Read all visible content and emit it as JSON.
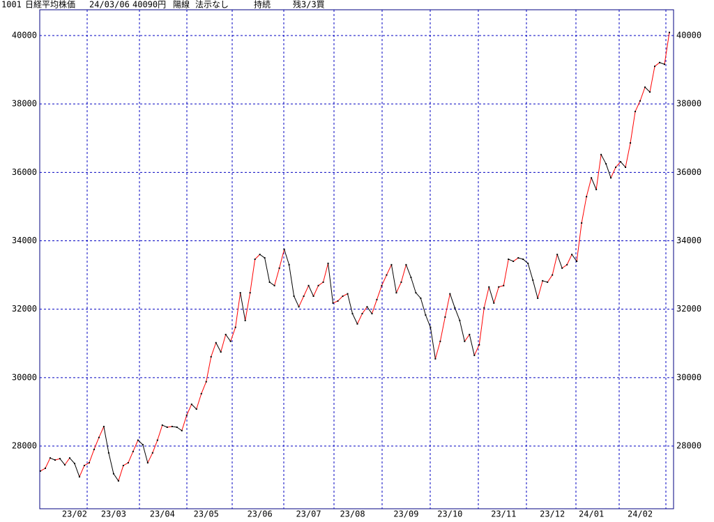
{
  "chart_data": {
    "type": "line",
    "title_parts": [
      "1001",
      "日経平均株価",
      "24/03/06",
      "40090円",
      "陽線",
      "法示なし",
      "持続",
      "残3/3買"
    ],
    "categories": [
      null,
      null,
      null,
      null,
      null,
      null,
      null,
      "23/02",
      null,
      null,
      null,
      null,
      null,
      null,
      null,
      "23/03",
      null,
      null,
      null,
      null,
      null,
      null,
      null,
      null,
      null,
      "23/04",
      null,
      null,
      null,
      null,
      null,
      null,
      null,
      null,
      "23/05",
      null,
      null,
      null,
      null,
      null,
      null,
      null,
      null,
      null,
      null,
      "23/06",
      null,
      null,
      null,
      null,
      null,
      null,
      null,
      null,
      null,
      "23/07",
      null,
      null,
      null,
      null,
      null,
      null,
      null,
      null,
      "23/08",
      null,
      null,
      null,
      null,
      null,
      null,
      null,
      null,
      null,
      null,
      "23/09",
      null,
      null,
      null,
      null,
      null,
      null,
      null,
      null,
      "23/10",
      null,
      null,
      null,
      null,
      null,
      null,
      null,
      null,
      null,
      null,
      "23/11",
      null,
      null,
      null,
      null,
      null,
      null,
      null,
      null,
      null,
      "23/12",
      null,
      null,
      null,
      null,
      null,
      null,
      null,
      "24/01",
      null,
      null,
      null,
      null,
      null,
      null,
      null,
      null,
      null,
      "24/02",
      null,
      null,
      null,
      null,
      null,
      null
    ],
    "values": [
      27270,
      27350,
      27650,
      27590,
      27630,
      27450,
      27650,
      27490,
      27100,
      27430,
      27510,
      27900,
      28250,
      28570,
      27800,
      27190,
      26980,
      27430,
      27510,
      27840,
      28170,
      28040,
      27510,
      27800,
      28170,
      28610,
      28550,
      28570,
      28550,
      28450,
      28900,
      29220,
      29080,
      29530,
      29880,
      30610,
      31020,
      30750,
      31260,
      31060,
      31470,
      32480,
      31670,
      32480,
      33460,
      33600,
      33500,
      32790,
      32690,
      33200,
      33750,
      33300,
      32380,
      32070,
      32380,
      32690,
      32380,
      32690,
      32790,
      33340,
      32180,
      32240,
      32380,
      32450,
      31870,
      31570,
      31870,
      32070,
      31870,
      32280,
      32690,
      33000,
      33300,
      32480,
      32790,
      33300,
      32930,
      32480,
      32320,
      31830,
      31470,
      30550,
      31060,
      31770,
      32450,
      32040,
      31670,
      31060,
      31260,
      30650,
      30960,
      32040,
      32650,
      32180,
      32650,
      32690,
      33460,
      33400,
      33500,
      33460,
      33340,
      32850,
      32320,
      32830,
      32790,
      33000,
      33600,
      33200,
      33300,
      33600,
      33400,
      34520,
      35290,
      35840,
      35500,
      36520,
      36250,
      35840,
      36150,
      36310,
      36150,
      36860,
      37780,
      38090,
      38490,
      38350,
      39100,
      39210,
      39160,
      40090
    ],
    "up_color": "#ff0000",
    "down_color": "#000000",
    "marker_color": "#000000",
    "ylim": [
      26166,
      40754
    ],
    "yticks": [
      28000,
      30000,
      32000,
      34000,
      36000,
      38000,
      40000
    ],
    "grid": true
  }
}
